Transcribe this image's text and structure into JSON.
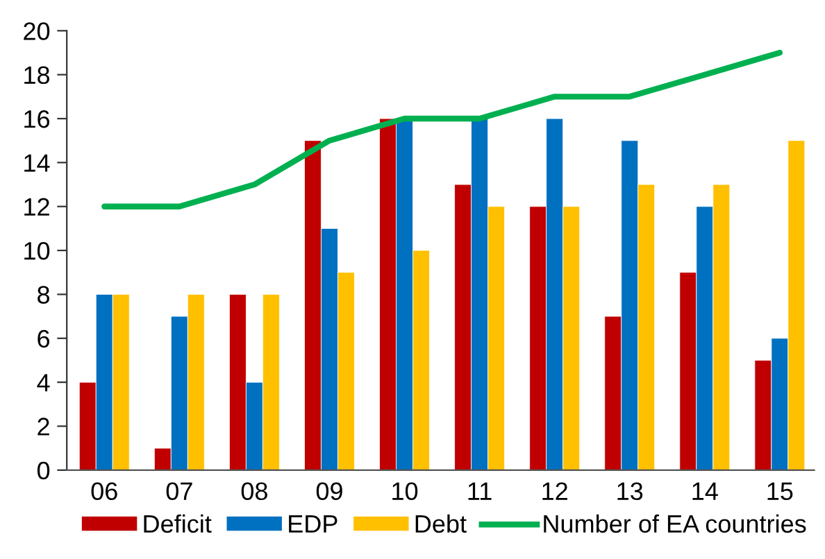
{
  "chart_data": {
    "type": "bar",
    "categories": [
      "06",
      "07",
      "08",
      "09",
      "10",
      "11",
      "12",
      "13",
      "14",
      "15"
    ],
    "series": [
      {
        "name": "Deficit",
        "color": "#c00000",
        "values": [
          4,
          1,
          8,
          15,
          16,
          13,
          12,
          7,
          9,
          5
        ]
      },
      {
        "name": "EDP",
        "color": "#0070c0",
        "values": [
          8,
          7,
          4,
          11,
          16,
          16,
          16,
          15,
          12,
          6
        ]
      },
      {
        "name": "Debt",
        "color": "#ffc000",
        "values": [
          8,
          8,
          8,
          9,
          10,
          12,
          12,
          13,
          13,
          15
        ]
      },
      {
        "name": "Number of EA countries",
        "type": "line",
        "color": "#00b050",
        "values": [
          12,
          12,
          13,
          15,
          16,
          16,
          17,
          17,
          18,
          19
        ]
      }
    ],
    "ylim": [
      0,
      20
    ],
    "yticks": [
      0,
      2,
      4,
      6,
      8,
      10,
      12,
      14,
      16,
      18,
      20
    ],
    "grid": false,
    "legend": "bottom",
    "marker": "none",
    "line_style": "solid"
  }
}
